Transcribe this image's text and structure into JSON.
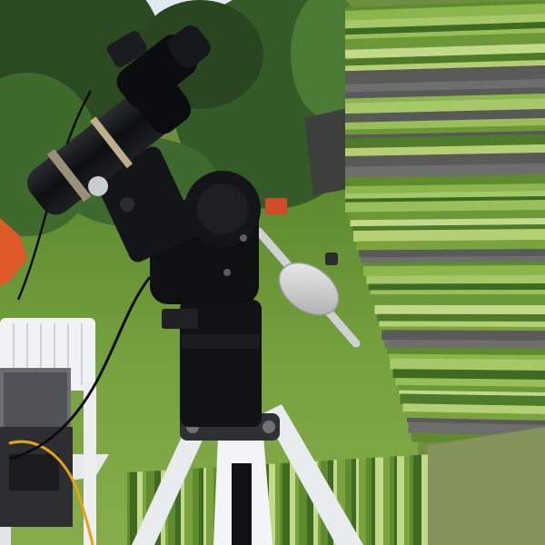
{
  "scene": {
    "subject": "telescope-on-equatorial-mount",
    "colors": {
      "sky": "#dfe9f0",
      "tree_dark": "#24401f",
      "tree_mid": "#3d6a2c",
      "lawn": "#6f9a3a",
      "lawn_light": "#8fb84c",
      "mount_black": "#111214",
      "tripod_white": "#e9ecef",
      "counterweight": "#d6d6d6",
      "stretch_panel": "#7f9a3f",
      "flat_panel": "#83935a",
      "chair_white": "#f1f2f3",
      "case_gray": "#6b6e72",
      "orange_accent": "#e0592a",
      "cable_yellow": "#e2a21a"
    }
  }
}
